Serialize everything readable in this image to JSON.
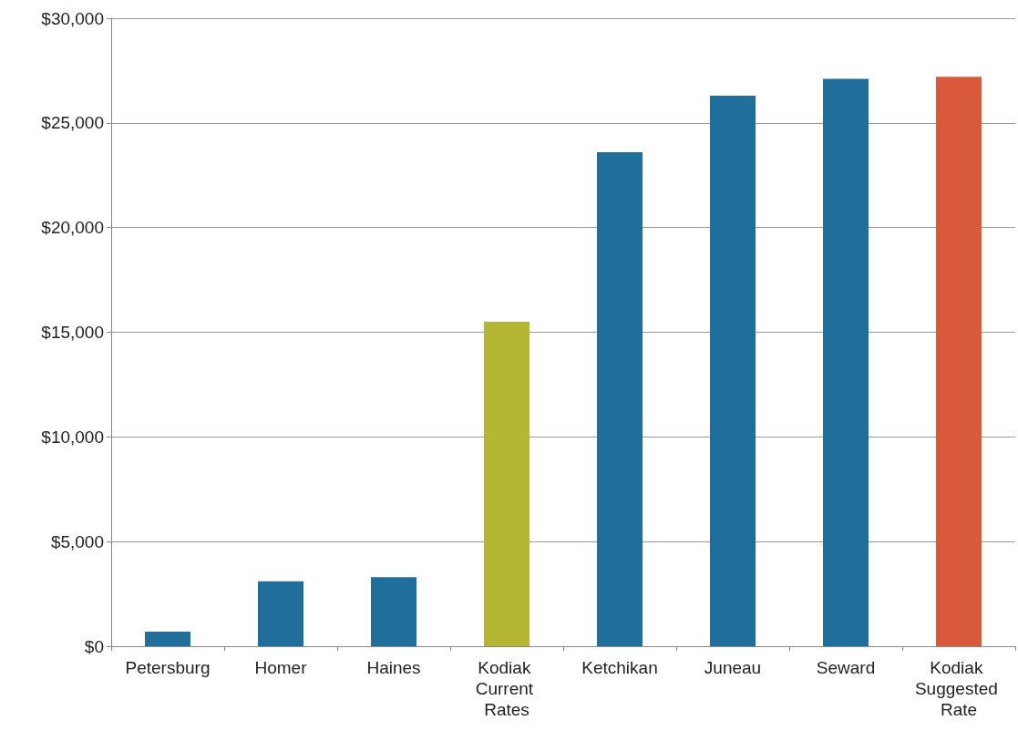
{
  "chart_data": {
    "type": "bar",
    "categories": [
      "Petersburg",
      "Homer",
      "Haines",
      "Kodiak Current Rates",
      "Ketchikan",
      "Juneau",
      "Seward",
      "Kodiak Suggested Rate"
    ],
    "values": [
      700,
      3100,
      3300,
      15500,
      23600,
      26300,
      27100,
      27200
    ],
    "colors": [
      "#1f6e9c",
      "#1f6e9c",
      "#1f6e9c",
      "#b5b634",
      "#1f6e9c",
      "#1f6e9c",
      "#1f6e9c",
      "#d95a3a"
    ],
    "ylim": [
      0,
      30000
    ],
    "yticks": [
      {
        "value": 0,
        "label": "$0"
      },
      {
        "value": 5000,
        "label": "$5,000"
      },
      {
        "value": 10000,
        "label": "$10,000"
      },
      {
        "value": 15000,
        "label": "$15,000"
      },
      {
        "value": 20000,
        "label": "$20,000"
      },
      {
        "value": 25000,
        "label": "$25,000"
      },
      {
        "value": 30000,
        "label": "$30,000"
      }
    ],
    "grid": "y"
  }
}
